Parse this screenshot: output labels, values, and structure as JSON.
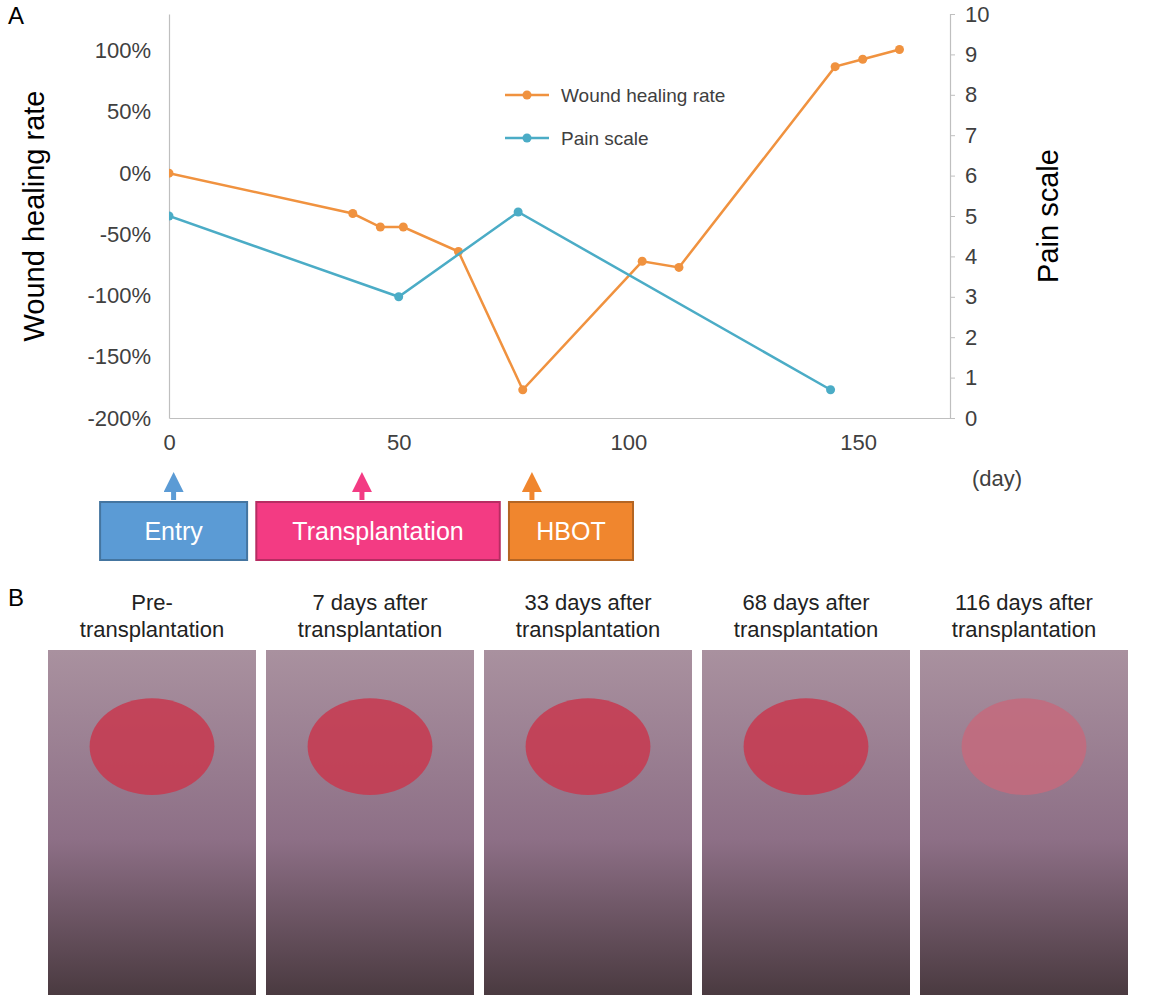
{
  "chart_data": {
    "type": "line",
    "xlabel": "(day)",
    "ylabel": "Wound healing rate",
    "y2label": "Pain scale",
    "xlim": [
      0,
      170
    ],
    "xticks": [
      0,
      50,
      100,
      150
    ],
    "ylim": [
      -200,
      130
    ],
    "yticks": [
      {
        "value": -200,
        "label": "-200%"
      },
      {
        "value": -150,
        "label": "-150%"
      },
      {
        "value": -100,
        "label": "-100%"
      },
      {
        "value": -50,
        "label": "-50%"
      },
      {
        "value": 0,
        "label": "0%"
      },
      {
        "value": 50,
        "label": "50%"
      },
      {
        "value": 100,
        "label": "100%"
      }
    ],
    "y2lim": [
      0,
      10
    ],
    "y2ticks": [
      0,
      1,
      2,
      3,
      4,
      5,
      6,
      7,
      8,
      9,
      10
    ],
    "legend": "top",
    "series": [
      {
        "name": "Wound healing rate",
        "color": "#f0923f",
        "marker": "circle",
        "line_style": "solid",
        "x": [
          0,
          40,
          46,
          51,
          63,
          77,
          103,
          111,
          145,
          151,
          159
        ],
        "values": [
          0,
          -33,
          -44,
          -44,
          -64,
          -177,
          -72,
          -77,
          87,
          93,
          101
        ]
      },
      {
        "name": "Pain scale",
        "axis": "y2",
        "color": "#4bacc6",
        "marker": "circle",
        "line_style": "solid",
        "x": [
          0,
          50,
          76,
          144
        ],
        "values": [
          5,
          3,
          5.1,
          0.7
        ]
      }
    ],
    "annotations": [
      {
        "text": "Entry",
        "x": 1,
        "span": [
          -15,
          17
        ],
        "color": "#5b9bd5"
      },
      {
        "text": "Transplantation",
        "x": 42,
        "span": [
          19,
          72
        ],
        "color": "#f33b83"
      },
      {
        "text": "HBOT",
        "x": 79,
        "span": [
          74,
          101
        ],
        "color": "#f0862e"
      }
    ]
  },
  "panels": [
    "A",
    "B"
  ],
  "photos": [
    {
      "caption": [
        "Pre-",
        "transplantation"
      ]
    },
    {
      "caption": [
        "7 days after",
        "transplantation"
      ]
    },
    {
      "caption": [
        "33 days after",
        "transplantation"
      ]
    },
    {
      "caption": [
        "68 days after",
        "transplantation"
      ]
    },
    {
      "caption": [
        "116 days after",
        "transplantation"
      ]
    }
  ]
}
